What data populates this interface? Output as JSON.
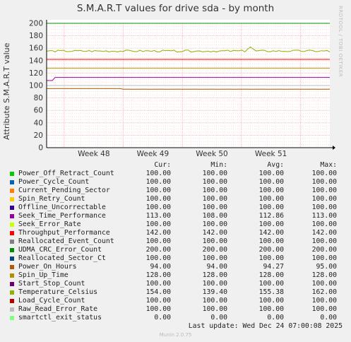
{
  "side_credit": "RRDTOOL / TOBI OETIKER",
  "footer": {
    "last_update": "Last update: Wed Dec 24 07:00:08 2025",
    "munin": "Munin 2.0.75"
  },
  "legend_headers": {
    "cur": "Cur:",
    "min": "Min:",
    "avg": "Avg:",
    "max": "Max:"
  },
  "chart_data": {
    "type": "line",
    "title": "S.M.A.R.T values for drive sda - by month",
    "ylabel": "Attribute S.M.A.R.T value",
    "xlabel": "",
    "ylim": [
      0,
      200
    ],
    "yticks": [
      0,
      20,
      40,
      60,
      80,
      100,
      120,
      140,
      160,
      180,
      200
    ],
    "x_ticks": [
      "Week 48",
      "Week 49",
      "Week 50",
      "Week 51"
    ],
    "grid": true,
    "legend_placement": "bottom",
    "series": [
      {
        "name": "Power_Off_Retract_Count",
        "color": "#00cc00",
        "cur": "100.00",
        "min": "100.00",
        "avg": "100.00",
        "max": "100.00"
      },
      {
        "name": "Power_Cycle_Count",
        "color": "#0066b3",
        "cur": "100.00",
        "min": "100.00",
        "avg": "100.00",
        "max": "100.00"
      },
      {
        "name": "Current_Pending_Sector",
        "color": "#ff8000",
        "cur": "100.00",
        "min": "100.00",
        "avg": "100.00",
        "max": "100.00"
      },
      {
        "name": "Spin_Retry_Count",
        "color": "#ffcc00",
        "cur": "100.00",
        "min": "100.00",
        "avg": "100.00",
        "max": "100.00"
      },
      {
        "name": "Offline_Uncorrectable",
        "color": "#330099",
        "cur": "100.00",
        "min": "100.00",
        "avg": "100.00",
        "max": "100.00"
      },
      {
        "name": "Seek_Time_Performance",
        "color": "#990099",
        "cur": "113.00",
        "min": "108.00",
        "avg": "112.86",
        "max": "113.00"
      },
      {
        "name": "Seek_Error_Rate",
        "color": "#ccff00",
        "cur": "100.00",
        "min": "100.00",
        "avg": "100.00",
        "max": "100.00"
      },
      {
        "name": "Throughput_Performance",
        "color": "#ff0000",
        "cur": "142.00",
        "min": "142.00",
        "avg": "142.00",
        "max": "142.00"
      },
      {
        "name": "Reallocated_Event_Count",
        "color": "#808080",
        "cur": "100.00",
        "min": "100.00",
        "avg": "100.00",
        "max": "100.00"
      },
      {
        "name": "UDMA_CRC_Error_Count",
        "color": "#008f00",
        "cur": "200.00",
        "min": "200.00",
        "avg": "200.00",
        "max": "200.00"
      },
      {
        "name": "Reallocated_Sector_Ct",
        "color": "#00487d",
        "cur": "100.00",
        "min": "100.00",
        "avg": "100.00",
        "max": "100.00"
      },
      {
        "name": "Power_On_Hours",
        "color": "#b35a00",
        "cur": "94.00",
        "min": "94.00",
        "avg": "94.27",
        "max": "95.00"
      },
      {
        "name": "Spin_Up_Time",
        "color": "#b38f00",
        "cur": "128.00",
        "min": "128.00",
        "avg": "128.00",
        "max": "128.00"
      },
      {
        "name": "Start_Stop_Count",
        "color": "#6b006b",
        "cur": "100.00",
        "min": "100.00",
        "avg": "100.00",
        "max": "100.00"
      },
      {
        "name": "Temperature_Celsius",
        "color": "#8fb300",
        "cur": "154.00",
        "min": "139.40",
        "avg": "155.38",
        "max": "162.00"
      },
      {
        "name": "Load_Cycle_Count",
        "color": "#b30000",
        "cur": "100.00",
        "min": "100.00",
        "avg": "100.00",
        "max": "100.00"
      },
      {
        "name": "Raw_Read_Error_Rate",
        "color": "#bebebe",
        "cur": "100.00",
        "min": "100.00",
        "avg": "100.00",
        "max": "100.00"
      },
      {
        "name": "smartctl_exit_status",
        "color": "#80ff80",
        "cur": "0.00",
        "min": "0.00",
        "avg": "0.00",
        "max": "0.00"
      }
    ]
  }
}
